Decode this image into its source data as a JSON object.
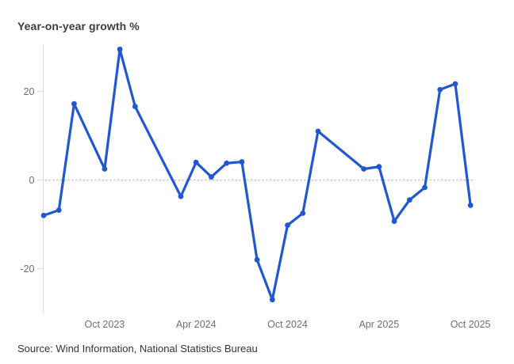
{
  "page": {
    "title": "Year-on-year growth %",
    "source": "Source: Wind Information, National Statistics Bureau"
  },
  "chart_data": {
    "type": "line",
    "title": "Year-on-year growth %",
    "x": [
      "Jun 2023",
      "Jul 2023",
      "Aug 2023",
      "Oct 2023",
      "Nov 2023",
      "Dec 2023",
      "Mar 2024",
      "Apr 2024",
      "May 2024",
      "Jun 2024",
      "Jul 2024",
      "Aug 2024",
      "Sep 2024",
      "Oct 2024",
      "Nov 2024",
      "Dec 2024",
      "Mar 2025",
      "Apr 2025",
      "May 2025",
      "Jun 2025",
      "Jul 2025",
      "Aug 2025",
      "Sep 2025",
      "Oct 2025"
    ],
    "values": [
      -8,
      -6.8,
      17.2,
      2.5,
      29.5,
      16.6,
      -3.7,
      4,
      0.7,
      3.8,
      4.1,
      -18,
      -27,
      -10.2,
      -7.5,
      11,
      2.5,
      3,
      -9.3,
      -4.5,
      -1.7,
      20.4,
      21.7,
      -5.7
    ],
    "y_ticks": [
      20,
      0,
      -20
    ],
    "x_tick_labels": [
      "Oct 2023",
      "Apr 2024",
      "Oct 2024",
      "Apr 2025",
      "Oct 2025"
    ],
    "ylim": [
      -30,
      31
    ],
    "xlabel": "",
    "ylabel": "",
    "grid": false,
    "legend": false,
    "zero_line_style": "dotted",
    "line_color": "#2158d2",
    "axis_color": "#d9d9d9",
    "tick_label_color": "#6f6f6f",
    "zero_line_color": "#9f9f9f"
  }
}
